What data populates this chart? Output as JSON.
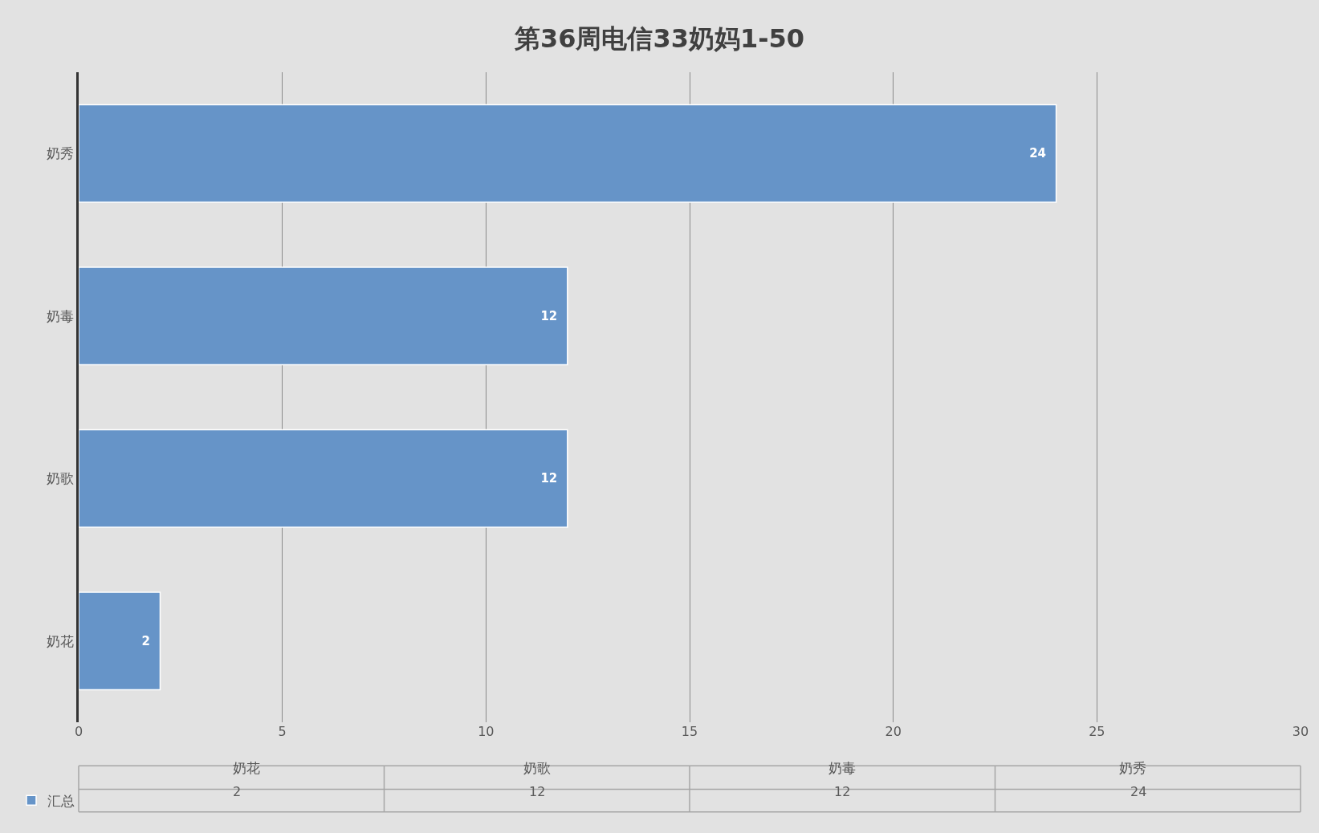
{
  "chart_data": {
    "type": "bar",
    "orientation": "horizontal",
    "title": "第36周电信33奶妈1-50",
    "categories": [
      "奶秀",
      "奶毒",
      "奶歌",
      "奶花"
    ],
    "series": [
      {
        "name": "汇总",
        "color": "#6694c8",
        "values": [
          24,
          12,
          12,
          2
        ]
      }
    ],
    "xlim": [
      0,
      30
    ],
    "xticks": [
      0,
      5,
      10,
      15,
      20,
      25,
      30
    ],
    "grid": "x",
    "data_labels": true,
    "legend": "bottom",
    "annotations": [
      "2",
      "12",
      "12",
      "24"
    ]
  }
}
